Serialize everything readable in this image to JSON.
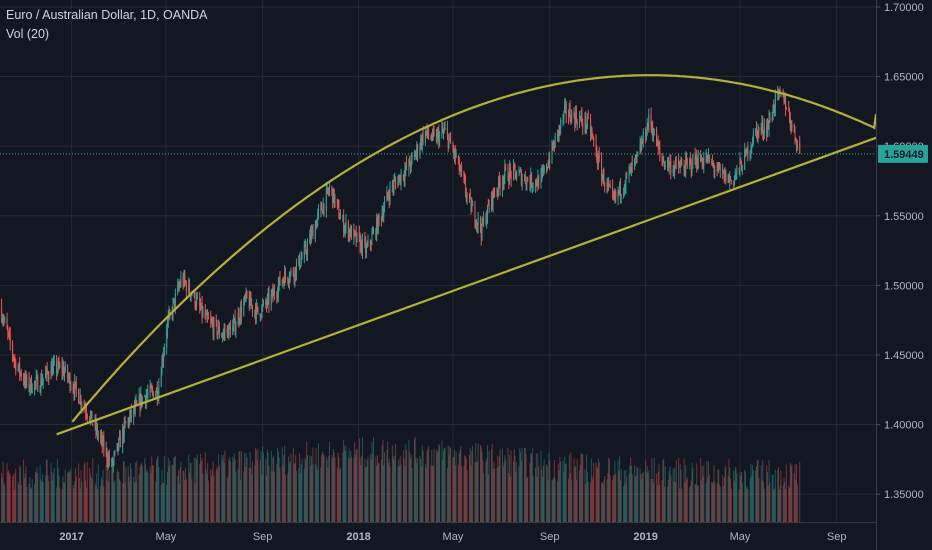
{
  "header": {
    "title": "Euro / Australian Dollar, 1D, OANDA",
    "volume_label": "Vol (20)"
  },
  "colors": {
    "background": "#131722",
    "grid": "#252a35",
    "axis_text": "#b2b5be",
    "up": "#26a69a",
    "down": "#ef5350",
    "drawing": "#b5b233",
    "price_tag": "#26a69a"
  },
  "chart_data": {
    "type": "candlestick",
    "title": "Euro / Australian Dollar, 1D, OANDA",
    "xlabel": "",
    "ylabel": "",
    "x_ticks": [
      "2017",
      "May",
      "Sep",
      "2018",
      "May",
      "Sep",
      "2019",
      "May",
      "Sep"
    ],
    "y_ticks": [
      "1.70000",
      "1.65000",
      "1.60000",
      "1.55000",
      "1.50000",
      "1.45000",
      "1.40000",
      "1.35000"
    ],
    "ylim": [
      1.33,
      1.705
    ],
    "xlim": [
      "2016-10-01",
      "2019-10-20"
    ],
    "grid": true,
    "last_price": "1.59449",
    "price_path": [
      [
        "2016-10-01",
        1.485
      ],
      [
        "2016-10-20",
        1.445
      ],
      [
        "2016-11-05",
        1.428
      ],
      [
        "2016-11-20",
        1.43
      ],
      [
        "2016-12-05",
        1.44
      ],
      [
        "2016-12-20",
        1.44
      ],
      [
        "2017-01-05",
        1.425
      ],
      [
        "2017-01-20",
        1.41
      ],
      [
        "2017-02-01",
        1.395
      ],
      [
        "2017-02-20",
        1.37
      ],
      [
        "2017-03-10",
        1.4
      ],
      [
        "2017-04-01",
        1.42
      ],
      [
        "2017-04-20",
        1.425
      ],
      [
        "2017-05-01",
        1.47
      ],
      [
        "2017-05-20",
        1.505
      ],
      [
        "2017-06-01",
        1.495
      ],
      [
        "2017-06-20",
        1.475
      ],
      [
        "2017-07-10",
        1.465
      ],
      [
        "2017-07-25",
        1.47
      ],
      [
        "2017-08-10",
        1.49
      ],
      [
        "2017-08-25",
        1.48
      ],
      [
        "2017-09-10",
        1.49
      ],
      [
        "2017-09-25",
        1.505
      ],
      [
        "2017-10-10",
        1.51
      ],
      [
        "2017-10-25",
        1.525
      ],
      [
        "2017-11-10",
        1.55
      ],
      [
        "2017-11-25",
        1.57
      ],
      [
        "2017-12-10",
        1.545
      ],
      [
        "2017-12-25",
        1.535
      ],
      [
        "2018-01-10",
        1.525
      ],
      [
        "2018-01-25",
        1.545
      ],
      [
        "2018-02-10",
        1.57
      ],
      [
        "2018-02-25",
        1.58
      ],
      [
        "2018-03-10",
        1.59
      ],
      [
        "2018-03-25",
        1.61
      ],
      [
        "2018-04-05",
        1.605
      ],
      [
        "2018-04-20",
        1.61
      ],
      [
        "2018-05-05",
        1.59
      ],
      [
        "2018-05-20",
        1.56
      ],
      [
        "2018-06-05",
        1.54
      ],
      [
        "2018-06-20",
        1.565
      ],
      [
        "2018-07-05",
        1.58
      ],
      [
        "2018-07-20",
        1.58
      ],
      [
        "2018-08-05",
        1.575
      ],
      [
        "2018-08-20",
        1.575
      ],
      [
        "2018-09-05",
        1.6
      ],
      [
        "2018-09-20",
        1.625
      ],
      [
        "2018-10-05",
        1.62
      ],
      [
        "2018-10-20",
        1.615
      ],
      [
        "2018-11-05",
        1.58
      ],
      [
        "2018-11-20",
        1.56
      ],
      [
        "2018-12-05",
        1.575
      ],
      [
        "2018-12-20",
        1.59
      ],
      [
        "2019-01-05",
        1.62
      ],
      [
        "2019-01-20",
        1.59
      ],
      [
        "2019-02-05",
        1.585
      ],
      [
        "2019-02-20",
        1.585
      ],
      [
        "2019-03-05",
        1.59
      ],
      [
        "2019-03-20",
        1.59
      ],
      [
        "2019-04-05",
        1.58
      ],
      [
        "2019-04-20",
        1.575
      ],
      [
        "2019-05-05",
        1.59
      ],
      [
        "2019-05-20",
        1.61
      ],
      [
        "2019-06-05",
        1.615
      ],
      [
        "2019-06-15",
        1.635
      ],
      [
        "2019-06-25",
        1.635
      ],
      [
        "2019-07-05",
        1.615
      ],
      [
        "2019-07-15",
        1.597
      ]
    ],
    "volume_max_date": "2018-02-10",
    "trendlines": [
      {
        "type": "line",
        "from": [
          "2016-12-12",
          1.393
        ],
        "to": [
          "2019-10-20",
          1.606
        ]
      },
      {
        "type": "arc",
        "from": [
          "2017-01-01",
          1.402
        ],
        "peak": [
          "2019-01-05",
          1.651
        ],
        "to": [
          "2019-10-20",
          1.623
        ]
      }
    ]
  }
}
